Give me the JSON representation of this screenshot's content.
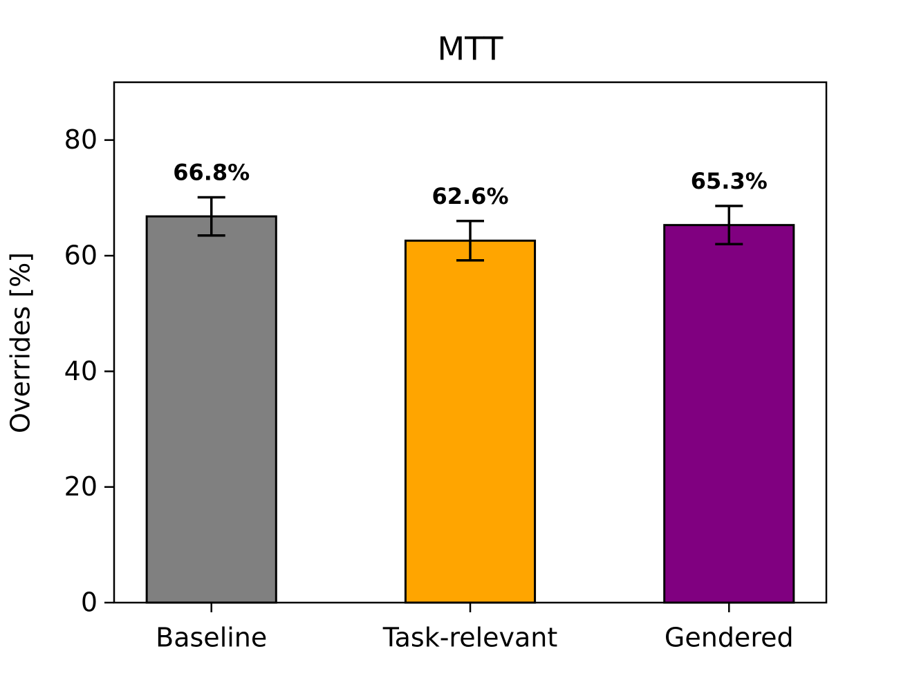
{
  "chart_data": {
    "type": "bar",
    "title": "MTT",
    "y_label": "Overrides [%]",
    "categories": [
      "Baseline",
      "Task-relevant",
      "Gendered"
    ],
    "values": [
      66.8,
      62.6,
      65.3
    ],
    "errors": [
      3.3,
      3.4,
      3.3
    ],
    "value_labels": [
      "66.8%",
      "62.6%",
      "65.3%"
    ],
    "colors": [
      "#808080",
      "#ffa500",
      "#800080"
    ],
    "ylim": [
      0,
      90
    ],
    "yticks": [
      0,
      20,
      40,
      60,
      80
    ],
    "grid": false
  }
}
